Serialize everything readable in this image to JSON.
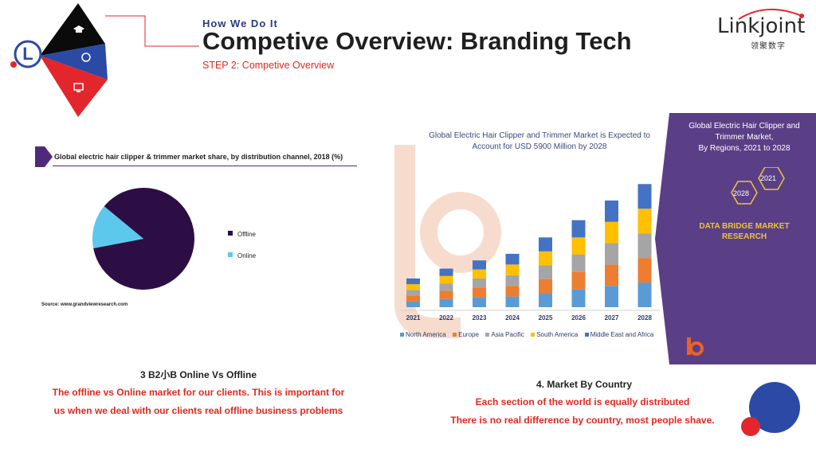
{
  "header": {
    "eyebrow": "How We Do It",
    "title": "Competive Overview: Branding Tech",
    "step": "STEP 2: Competive Overview"
  },
  "brand": {
    "word": "Linkjoint",
    "chinese": "领聚数字",
    "corner_letter": "L"
  },
  "left_section": {
    "chart_title": "Global electric hair clipper & trimmer market share, by distribution channel, 2018 (%)",
    "source": "Source: www.grandviewresearch.com",
    "caption_title": "3 B2小B Online Vs Offline",
    "caption_line1": "The offline vs Online market for our clients. This is important for",
    "caption_line2": "us when we deal with our clients real offline business problems"
  },
  "right_section": {
    "chart_title_line1": "Global Electric Hair Clipper and Trimmer Market is Expected to",
    "chart_title_line2": "Account for USD 5900 Million by 2028",
    "panel_line1": "Global Electric Hair Clipper and",
    "panel_line2": "Trimmer Market,",
    "panel_line3": "By Regions, 2021 to 2028",
    "hex_a": "2028",
    "hex_b": "2021",
    "panel_brand_line1": "DATA BRIDGE MARKET",
    "panel_brand_line2": "RESEARCH",
    "caption_title": "4. Market By Country",
    "caption_line1": "Each section of the world is equally distributed",
    "caption_line2": "There is no real difference by country, most people shave."
  },
  "chart_data": [
    {
      "type": "pie",
      "title": "Global electric hair clipper & trimmer market share, by distribution channel, 2018 (%)",
      "labels": [
        "Offline",
        "Online"
      ],
      "values": [
        86,
        14
      ],
      "colors": [
        "#2c0e45",
        "#5bc8ec"
      ]
    },
    {
      "type": "bar",
      "stacked": true,
      "title": "Global Electric Hair Clipper and Trimmer Market is Expected to Account for USD 5900 Million by 2028",
      "categories": [
        "2021",
        "2022",
        "2023",
        "2024",
        "2025",
        "2026",
        "2027",
        "2028"
      ],
      "series": [
        {
          "name": "North America",
          "color": "#5b9bd5",
          "values": [
            7,
            10,
            12,
            13,
            17,
            22,
            26,
            30
          ]
        },
        {
          "name": "Europe",
          "color": "#ed7d31",
          "values": [
            7,
            10,
            12,
            13,
            17,
            21,
            26,
            30
          ]
        },
        {
          "name": "Asia Pacific",
          "color": "#a5a5a5",
          "values": [
            7,
            9,
            11,
            13,
            17,
            21,
            26,
            30
          ]
        },
        {
          "name": "South America",
          "color": "#ffc000",
          "values": [
            7,
            9,
            11,
            13,
            17,
            21,
            26,
            30
          ]
        },
        {
          "name": "Middle East and Africa",
          "color": "#4472c4",
          "values": [
            7,
            9,
            11,
            13,
            17,
            21,
            26,
            30
          ]
        }
      ],
      "ylim": [
        0,
        160
      ]
    }
  ]
}
